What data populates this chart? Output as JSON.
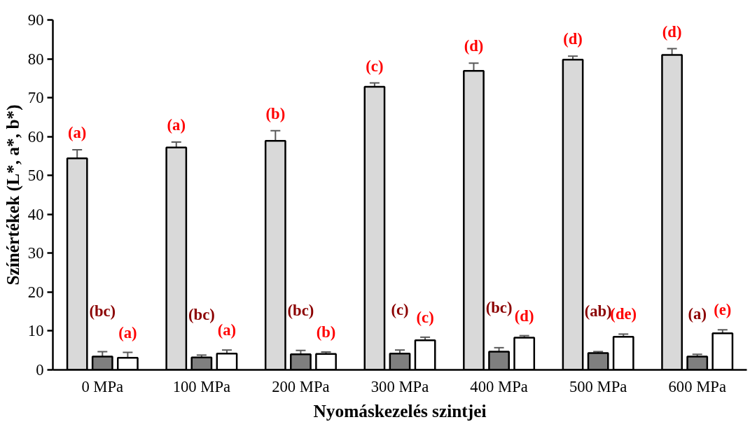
{
  "chart_data": {
    "type": "bar",
    "xlabel": "Nyomáskezelés szintjei",
    "ylabel": "Színértékek (L*, a*, b*)",
    "categories": [
      "0 MPa",
      "100 MPa",
      "200 MPa",
      "300 MPa",
      "400 MPa",
      "500 MPa",
      "600 MPa"
    ],
    "series": [
      {
        "color": "#d9d9d9",
        "values": [
          54.4,
          57.2,
          58.9,
          72.8,
          76.9,
          79.8,
          81.0
        ],
        "errors": [
          2.2,
          1.4,
          2.6,
          1.0,
          2.0,
          0.9,
          1.6
        ]
      },
      {
        "color": "#7f7f7f",
        "values": [
          3.4,
          3.2,
          4.0,
          4.2,
          4.7,
          4.3,
          3.4
        ],
        "errors": [
          1.3,
          0.6,
          1.0,
          0.9,
          1.0,
          0.4,
          0.6
        ]
      },
      {
        "color": "#ffffff",
        "values": [
          3.1,
          4.2,
          4.1,
          7.6,
          8.3,
          8.5,
          9.4
        ],
        "errors": [
          1.4,
          0.9,
          0.5,
          0.8,
          0.5,
          0.7,
          0.9
        ]
      }
    ],
    "ylim": [
      0,
      90
    ],
    "yticks": [
      0,
      10,
      20,
      30,
      40,
      50,
      60,
      70,
      80,
      90
    ],
    "grid": false,
    "annotations": [
      "(a)",
      "(a)",
      "(b)",
      "(c)",
      "(d)",
      "(d)",
      "(d)",
      "(bc)",
      "(bc)",
      "(bc)",
      "(c)",
      "(bc)",
      "(ab)",
      "(a)",
      "(a)",
      "(a)",
      "(b)",
      "(c)",
      "(d)",
      "(de)",
      "(e)"
    ]
  }
}
